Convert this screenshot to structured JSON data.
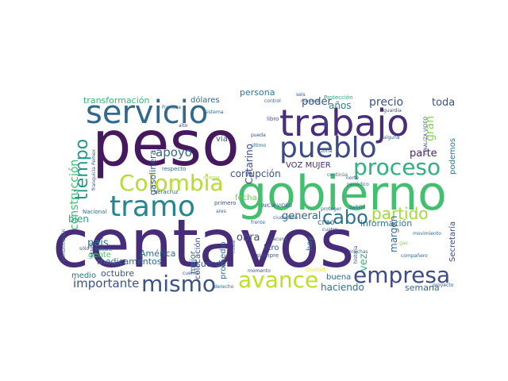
{
  "words": [
    {
      "text": "centavos",
      "color": "#472c7a"
    },
    {
      "text": "peso",
      "color": "#46195f"
    },
    {
      "text": "gobierno",
      "color": "#44bf70"
    },
    {
      "text": "trabajo",
      "color": "#472d7b"
    },
    {
      "text": "servicio",
      "color": "#31688e"
    },
    {
      "text": "pueblo",
      "color": "#3e4989"
    },
    {
      "text": "tramo",
      "color": "#23888e"
    },
    {
      "text": "avance",
      "color": "#bddf26"
    },
    {
      "text": "Colombia",
      "color": "#b5de2b"
    },
    {
      "text": "mismo",
      "color": "#3b528b"
    },
    {
      "text": "empresa",
      "color": "#3e4a89"
    },
    {
      "text": "proceso",
      "color": "#2db27d"
    },
    {
      "text": "cabo",
      "color": "#2c728e"
    },
    {
      "text": "tiempo",
      "color": "#1f9a8a"
    },
    {
      "text": "partido",
      "color": "#a2da37"
    },
    {
      "text": "construcción",
      "color": "#3dbc74"
    },
    {
      "text": "importante",
      "color": "#3b528b"
    },
    {
      "text": "apoyo",
      "color": "#31678e"
    },
    {
      "text": "corrupción",
      "color": "#3b528b"
    },
    {
      "text": "transformación",
      "color": "#35b779"
    },
    {
      "text": "dólares",
      "color": "#31688e"
    },
    {
      "text": "persona",
      "color": "#2a788e"
    },
    {
      "text": "precio",
      "color": "#3b528b"
    },
    {
      "text": "parte",
      "color": "#481f70"
    },
    {
      "text": "poder",
      "color": "#3b528b"
    },
    {
      "text": "años",
      "color": "#26828e"
    },
    {
      "text": "toda",
      "color": "#3b528b"
    },
    {
      "text": "gran",
      "color": "#84d44b"
    },
    {
      "text": "general",
      "color": "#31688e"
    },
    {
      "text": "información",
      "color": "#2c728e"
    },
    {
      "text": "medicamentos",
      "color": "#31688e"
    },
    {
      "text": "acuerdo",
      "color": "#3b528b"
    },
    {
      "text": "fecha",
      "color": "#6ccd5a"
    },
    {
      "text": "obra",
      "color": "#3e4989"
    },
    {
      "text": "gente",
      "color": "#4ac16d"
    },
    {
      "text": "América",
      "color": "#31688e"
    },
    {
      "text": "medio",
      "color": "#2c728e"
    },
    {
      "text": "octubre",
      "color": "#3b528b"
    },
    {
      "text": "semana",
      "color": "#31688e"
    },
    {
      "text": "haciendo",
      "color": "#2c728e"
    },
    {
      "text": "buena",
      "color": "#31688e"
    },
    {
      "text": "bien",
      "color": "#22a884"
    },
    {
      "text": "país",
      "color": "#2a788e"
    },
    {
      "text": "hoy",
      "color": "#2a788e"
    },
    {
      "text": "vez",
      "color": "#35b779"
    },
    {
      "text": "margen",
      "color": "#31688e"
    },
    {
      "text": "Secretaría",
      "color": "#3e4989"
    },
    {
      "text": "Catarino",
      "color": "#3e4989"
    },
    {
      "text": "VOZ MUJER",
      "color": "#472c7a"
    },
    {
      "text": "vía",
      "color": "#3b528b"
    },
    {
      "text": "gasolinera",
      "color": "#3b528b"
    },
    {
      "text": "podemos",
      "color": "#2a788e"
    },
    {
      "text": "colocación",
      "color": "#3b528b"
    },
    {
      "text": "promedio",
      "color": "#31688e"
    },
    {
      "text": "litro",
      "color": "#3b528b"
    },
    {
      "text": "mejor",
      "color": "#31688e"
    },
    {
      "text": "creo",
      "color": "#31688e"
    },
    {
      "text": "respecto",
      "color": "#31688e"
    },
    {
      "text": "sistema",
      "color": "#31688e"
    },
    {
      "text": "libro",
      "color": "#3b528b"
    },
    {
      "text": "control",
      "color": "#31688e"
    },
    {
      "text": "seis",
      "color": "#3b528b"
    },
    {
      "text": "Protección",
      "color": "#22a884"
    },
    {
      "text": "Frenaaa",
      "color": "#31688e"
    },
    {
      "text": "alto",
      "color": "#3b528b"
    },
    {
      "text": "pueda",
      "color": "#3b528b"
    },
    {
      "text": "último",
      "color": "#31688e"
    },
    {
      "text": "zona",
      "color": "#31688e"
    },
    {
      "text": "ninguna",
      "color": "#a2da37"
    },
    {
      "text": "Veracruz",
      "color": "#31688e"
    },
    {
      "text": "franquicia Pemex",
      "color": "#3b528b"
    },
    {
      "text": "Nacional",
      "color": "#31688e"
    },
    {
      "text": "sólo",
      "color": "#3b528b"
    },
    {
      "text": "cultura",
      "color": "#31688e"
    },
    {
      "text": "comunicación",
      "color": "#31688e"
    },
    {
      "text": "cuenta",
      "color": "#3b528b"
    },
    {
      "text": "derecho",
      "color": "#31688e"
    },
    {
      "text": "momento",
      "color": "#3b528b"
    },
    {
      "text": "siempre",
      "color": "#3b528b"
    },
    {
      "text": "frente",
      "color": "#31688e"
    },
    {
      "text": "vacuna",
      "color": "#3b528b"
    },
    {
      "text": "ciudadano",
      "color": "#31688e"
    },
    {
      "text": "proteger",
      "color": "#31688e"
    },
    {
      "text": "muchas",
      "color": "#31688e"
    },
    {
      "text": "compañero",
      "color": "#31688e"
    },
    {
      "text": "proyecto",
      "color": "#3b528b"
    },
    {
      "text": "movimiento",
      "color": "#31688e"
    },
    {
      "text": "cuatro",
      "color": "#3b528b"
    },
    {
      "text": "historia",
      "color": "#3b528b"
    },
    {
      "text": "INICIA VIDEO",
      "color": "#3b528b"
    },
    {
      "text": "Saltillo",
      "color": "#31688e"
    },
    {
      "text": "periódico",
      "color": "#31688e"
    },
    {
      "text": "norte",
      "color": "#3b528b"
    },
    {
      "text": "continúa",
      "color": "#2a788e"
    },
    {
      "text": "FINALIZA VIDEO",
      "color": "#3b528b"
    },
    {
      "text": "guardia",
      "color": "#3b528b"
    },
    {
      "text": "alguna",
      "color": "#31688e"
    },
    {
      "text": "manera",
      "color": "#31688e"
    },
    {
      "text": "tipo",
      "color": "#31688e"
    },
    {
      "text": "primero",
      "color": "#3b528b"
    },
    {
      "text": "ares",
      "color": "#31688e"
    },
    {
      "text": "costa",
      "color": "#31688e"
    },
    {
      "text": "Ciudad",
      "color": "#fde725"
    },
    {
      "text": "gas",
      "color": "#84d44b"
    },
    {
      "text": "MUJER",
      "color": "#3b528b"
    },
    {
      "text": "cosa",
      "color": "#3b528b"
    }
  ]
}
